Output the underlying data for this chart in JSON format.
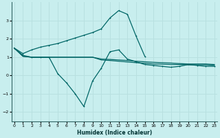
{
  "xlabel": "Humidex (Indice chaleur)",
  "background_color": "#c8eeee",
  "grid_color": "#b8e0e0",
  "line_color": "#006666",
  "x": [
    0,
    1,
    2,
    3,
    4,
    5,
    6,
    7,
    8,
    9,
    10,
    11,
    12,
    13,
    14,
    15,
    16,
    17,
    18,
    19,
    20,
    21,
    22,
    23
  ],
  "series1": [
    1.5,
    1.2,
    1.4,
    1.55,
    1.65,
    1.75,
    1.9,
    2.05,
    2.2,
    2.35,
    2.55,
    3.15,
    3.55,
    3.35,
    2.15,
    1.05,
    0.75,
    0.65,
    0.6,
    0.55,
    0.55,
    0.55,
    0.55,
    0.5
  ],
  "series2": [
    1.5,
    1.1,
    1.0,
    1.0,
    1.0,
    0.1,
    -0.4,
    -1.0,
    -1.7,
    -0.3,
    0.4,
    1.3,
    1.4,
    0.9,
    0.75,
    0.6,
    0.55,
    0.5,
    0.45,
    0.5,
    0.6,
    0.55,
    0.5,
    0.5
  ],
  "series3": [
    1.5,
    1.05,
    1.0,
    1.0,
    1.0,
    1.0,
    1.0,
    1.0,
    1.0,
    1.0,
    0.85,
    0.82,
    0.78,
    0.74,
    0.7,
    0.67,
    0.63,
    0.62,
    0.6,
    0.6,
    0.58,
    0.58,
    0.58,
    0.55
  ],
  "series4": [
    1.5,
    1.05,
    1.0,
    1.0,
    1.0,
    1.0,
    1.0,
    1.0,
    1.0,
    1.0,
    0.9,
    0.88,
    0.85,
    0.82,
    0.78,
    0.75,
    0.72,
    0.7,
    0.68,
    0.65,
    0.63,
    0.63,
    0.63,
    0.6
  ],
  "ylim": [
    -2.5,
    4.0
  ],
  "xlim": [
    -0.3,
    23.3
  ],
  "yticks": [
    -2,
    -1,
    0,
    1,
    2,
    3
  ],
  "xticks": [
    0,
    1,
    2,
    3,
    4,
    5,
    6,
    7,
    8,
    9,
    10,
    11,
    12,
    13,
    14,
    15,
    16,
    17,
    18,
    19,
    20,
    21,
    22,
    23
  ]
}
